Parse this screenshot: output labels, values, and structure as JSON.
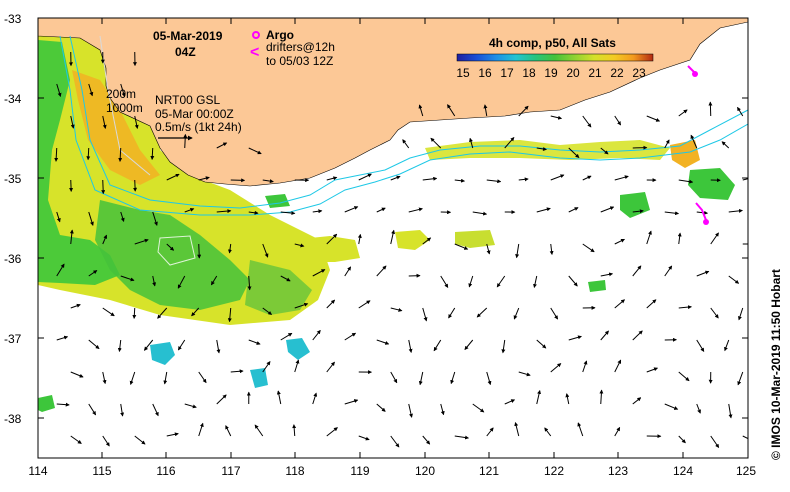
{
  "map": {
    "date_label": "05-Mar-2019",
    "time_label": "04Z",
    "argo_label": "Argo",
    "drifters_label_1": "drifters@12h",
    "drifters_label_2": "to 05/03 12Z",
    "isobath_200": "200m",
    "isobath_1000": "1000m",
    "gsl_title": "NRT00 GSL",
    "gsl_date": "05-Mar 00:00Z",
    "scale_text": "0.5m/s (1kt 24h)",
    "colorbar_title": "4h comp, p50, All Sats",
    "colorbar_ticks": [
      "15",
      "16",
      "17",
      "18",
      "19",
      "20",
      "21",
      "22",
      "23"
    ],
    "credit": "©  IMOS 10-Mar-2019 11:50 Hobart",
    "lon_labels": [
      "114",
      "115",
      "116",
      "117",
      "118",
      "119",
      "120",
      "121",
      "122",
      "123",
      "124",
      "125"
    ],
    "lat_labels": [
      "-33",
      "-34",
      "-35",
      "-36",
      "-37",
      "-38"
    ],
    "colors": {
      "land": "#fcc896",
      "sst_warm_yellow": "#d7e32a",
      "sst_green": "#3dc63b",
      "sst_cyan": "#27bfd0",
      "sst_orange": "#f2b223",
      "argo_magenta": "#ff00ff",
      "isobath_cyan": "#1ec8e6",
      "isobath_gray": "#d9d9d9"
    },
    "colorbar_colors": [
      "#1f1f9f",
      "#1a4fd6",
      "#1e8fe6",
      "#23c4d2",
      "#26c47e",
      "#45c23b",
      "#8fd232",
      "#d4e02a",
      "#f3cc24",
      "#f39a1e",
      "#e15c18",
      "#b32a12"
    ]
  }
}
